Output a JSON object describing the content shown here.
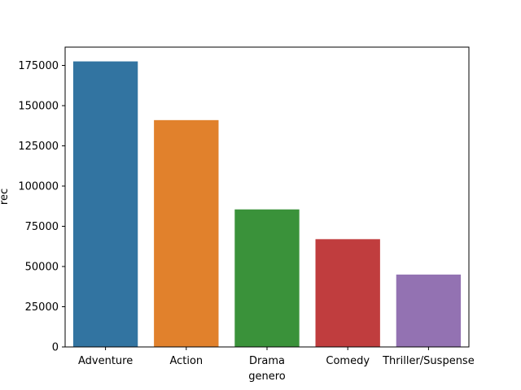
{
  "chart_data": {
    "type": "bar",
    "title": "",
    "xlabel": "genero",
    "ylabel": "rec",
    "categories": [
      "Adventure",
      "Action",
      "Drama",
      "Comedy",
      "Thriller/Suspense"
    ],
    "values": [
      177500,
      141000,
      85500,
      67000,
      45000
    ],
    "colors": [
      "#3274a1",
      "#e1812c",
      "#3a923a",
      "#c03d3e",
      "#9372b2"
    ],
    "yticks": [
      0,
      25000,
      50000,
      75000,
      100000,
      125000,
      150000,
      175000
    ],
    "ylim": [
      0,
      186375
    ],
    "grid": false,
    "legend": "none"
  }
}
